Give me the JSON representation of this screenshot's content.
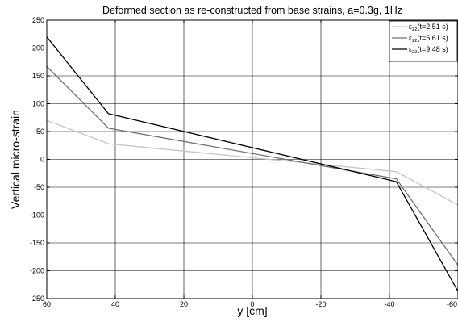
{
  "chart_data": {
    "type": "line",
    "title": "Deformed section as re-constructed from base strains, a=0.3g, 1Hz",
    "xlabel": "y [cm]",
    "ylabel": "Vertical micro-strain",
    "xlim": [
      60,
      -60
    ],
    "ylim": [
      -250,
      250
    ],
    "x_reversed": true,
    "x_ticks": [
      60,
      40,
      20,
      0,
      -20,
      -40,
      -60
    ],
    "x_tick_labels": [
      "60",
      "40",
      "20",
      "0",
      "-20",
      "-40",
      "-60"
    ],
    "y_ticks": [
      250,
      200,
      150,
      100,
      50,
      0,
      -50,
      -100,
      -150,
      -200,
      -250
    ],
    "y_tick_labels": [
      "250",
      "200",
      "150",
      "100",
      "50",
      "0",
      "-50",
      "-100",
      "-150",
      "-200",
      "-250"
    ],
    "grid": true,
    "legend_position": "top-right",
    "series": [
      {
        "name_symbol": "ε",
        "name_sub": "zz",
        "name_rest": "(t=2.51 s)",
        "color": "#c4c4c4",
        "x": [
          60,
          42,
          -42,
          -60
        ],
        "y": [
          70,
          28,
          -22,
          -82
        ]
      },
      {
        "name_symbol": "ε",
        "name_sub": "zz",
        "name_rest": "(t=5.61 s)",
        "color": "#707070",
        "x": [
          60,
          42,
          -42,
          -60
        ],
        "y": [
          167,
          56,
          -35,
          -190
        ]
      },
      {
        "name_symbol": "ε",
        "name_sub": "zz",
        "name_rest": "(t=9.48 s)",
        "color": "#000000",
        "x": [
          60,
          42,
          -42,
          -60
        ],
        "y": [
          220,
          82,
          -40,
          -237
        ]
      }
    ]
  }
}
